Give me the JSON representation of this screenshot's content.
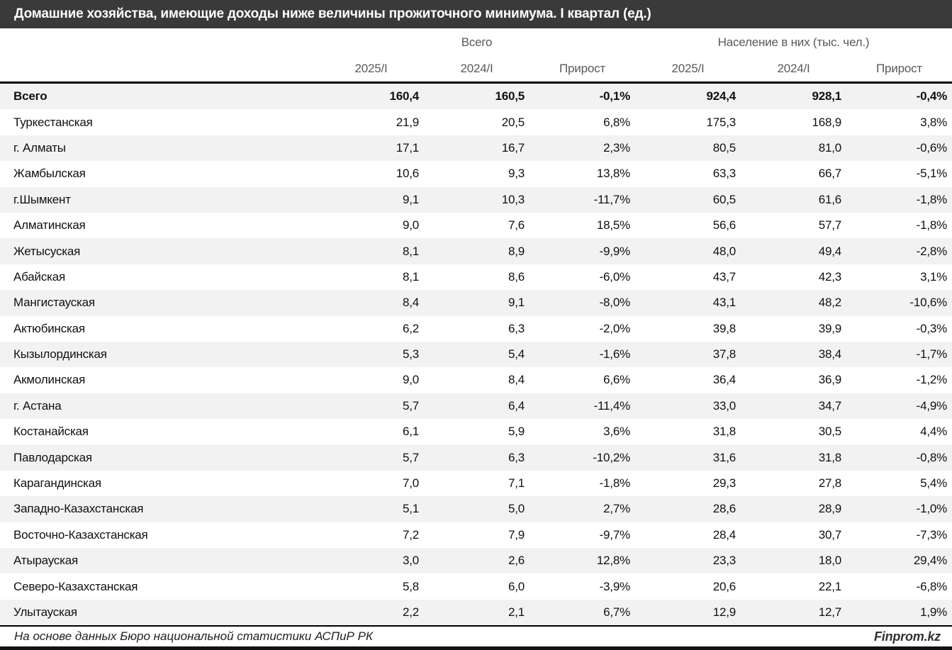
{
  "header": {
    "title": "Домашние хозяйства, имеющие доходы ниже величины прожиточного минимума. I квартал (ед.)"
  },
  "chart_data": {
    "type": "table",
    "title": "Домашние хозяйства, имеющие доходы ниже величины прожиточного минимума. I квартал (ед.)",
    "group_headers": [
      {
        "label": "Всего",
        "colspan": 3
      },
      {
        "label": "Население в них (тыс. чел.)",
        "colspan": 3
      }
    ],
    "sub_headers": [
      "2025/I",
      "2024/I",
      "Прирост",
      "2025/I",
      "2024/I",
      "Прирост"
    ],
    "rows": [
      {
        "region": "Всего",
        "bold": true,
        "values": [
          "160,4",
          "160,5",
          "-0,1%",
          "924,4",
          "928,1",
          "-0,4%"
        ]
      },
      {
        "region": "Туркестанская",
        "values": [
          "21,9",
          "20,5",
          "6,8%",
          "175,3",
          "168,9",
          "3,8%"
        ]
      },
      {
        "region": "г. Алматы",
        "values": [
          "17,1",
          "16,7",
          "2,3%",
          "80,5",
          "81,0",
          "-0,6%"
        ]
      },
      {
        "region": "Жамбылская",
        "values": [
          "10,6",
          "9,3",
          "13,8%",
          "63,3",
          "66,7",
          "-5,1%"
        ]
      },
      {
        "region": "г.Шымкент",
        "values": [
          "9,1",
          "10,3",
          "-11,7%",
          "60,5",
          "61,6",
          "-1,8%"
        ]
      },
      {
        "region": "Алматинская",
        "values": [
          "9,0",
          "7,6",
          "18,5%",
          "56,6",
          "57,7",
          "-1,8%"
        ]
      },
      {
        "region": "Жетысуская",
        "values": [
          "8,1",
          "8,9",
          "-9,9%",
          "48,0",
          "49,4",
          "-2,8%"
        ]
      },
      {
        "region": "Абайская",
        "values": [
          "8,1",
          "8,6",
          "-6,0%",
          "43,7",
          "42,3",
          "3,1%"
        ]
      },
      {
        "region": "Мангистауская",
        "values": [
          "8,4",
          "9,1",
          "-8,0%",
          "43,1",
          "48,2",
          "-10,6%"
        ]
      },
      {
        "region": "Актюбинская",
        "values": [
          "6,2",
          "6,3",
          "-2,0%",
          "39,8",
          "39,9",
          "-0,3%"
        ]
      },
      {
        "region": "Кызылординская",
        "values": [
          "5,3",
          "5,4",
          "-1,6%",
          "37,8",
          "38,4",
          "-1,7%"
        ]
      },
      {
        "region": "Акмолинская",
        "values": [
          "9,0",
          "8,4",
          "6,6%",
          "36,4",
          "36,9",
          "-1,2%"
        ]
      },
      {
        "region": "г. Астана",
        "values": [
          "5,7",
          "6,4",
          "-11,4%",
          "33,0",
          "34,7",
          "-4,9%"
        ]
      },
      {
        "region": "Костанайская",
        "values": [
          "6,1",
          "5,9",
          "3,6%",
          "31,8",
          "30,5",
          "4,4%"
        ]
      },
      {
        "region": "Павлодарская",
        "values": [
          "5,7",
          "6,3",
          "-10,2%",
          "31,6",
          "31,8",
          "-0,8%"
        ]
      },
      {
        "region": "Карагандинская",
        "values": [
          "7,0",
          "7,1",
          "-1,8%",
          "29,3",
          "27,8",
          "5,4%"
        ]
      },
      {
        "region": "Западно-Казахстанская",
        "values": [
          "5,1",
          "5,0",
          "2,7%",
          "28,6",
          "28,9",
          "-1,0%"
        ]
      },
      {
        "region": "Восточно-Казахстанская",
        "values": [
          "7,2",
          "7,9",
          "-9,7%",
          "28,4",
          "30,7",
          "-7,3%"
        ]
      },
      {
        "region": "Атырауская",
        "values": [
          "3,0",
          "2,6",
          "12,8%",
          "23,3",
          "18,0",
          "29,4%"
        ]
      },
      {
        "region": "Северо-Казахстанская",
        "values": [
          "5,8",
          "6,0",
          "-3,9%",
          "20,6",
          "22,1",
          "-6,8%"
        ]
      },
      {
        "region": "Улытауская",
        "values": [
          "2,2",
          "2,1",
          "6,7%",
          "12,9",
          "12,7",
          "1,9%"
        ]
      }
    ]
  },
  "footer": {
    "source": "На основе данных Бюро национальной статистики АСПиР РК",
    "brand": "Finprom.kz"
  },
  "colors": {
    "title_bar": "#3a3a3a",
    "title_text": "#ffffff",
    "header_text": "#595959",
    "body_text": "#111111",
    "stripe": "#f2f2f2",
    "border": "#000000"
  }
}
